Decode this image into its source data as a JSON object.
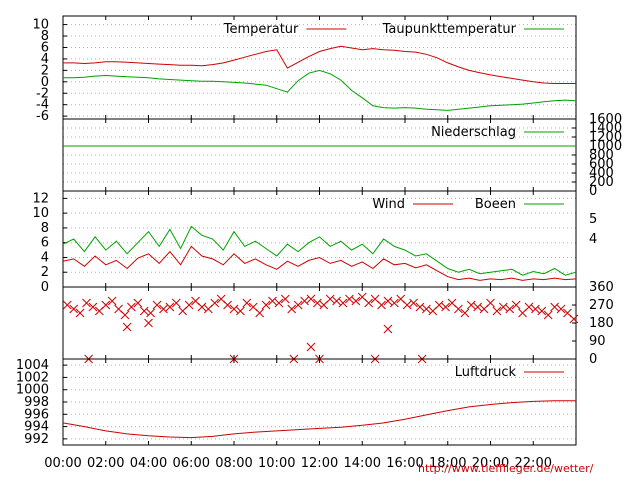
{
  "footer": {
    "credit": "http://www.tiefflieger.de/wetter/"
  },
  "x_axis": {
    "tick_labels": [
      "00:00",
      "02:00",
      "04:00",
      "06:00",
      "08:00",
      "10:00",
      "12:00",
      "14:00",
      "16:00",
      "18:00",
      "20:00",
      "22:00"
    ],
    "range_hours": [
      0,
      24
    ]
  },
  "colors": {
    "red": "#d00000",
    "green": "#00a000",
    "grid": "#b0b0b0",
    "frame": "#000000"
  },
  "chart_data": [
    {
      "id": "temperature",
      "type": "line",
      "ylim": [
        -6.5,
        11.5
      ],
      "yticks": [
        -6,
        -4,
        -2,
        0,
        2,
        4,
        6,
        8,
        10
      ],
      "grid": true,
      "legend_position": "top",
      "x": [
        0,
        0.5,
        1,
        1.5,
        2,
        2.5,
        3,
        3.5,
        4,
        4.5,
        5,
        5.5,
        6,
        6.5,
        7,
        7.5,
        8,
        8.5,
        9,
        9.5,
        10,
        10.5,
        11,
        11.5,
        12,
        12.5,
        13,
        13.5,
        14,
        14.5,
        15,
        15.5,
        16,
        16.5,
        17,
        17.5,
        18,
        18.5,
        19,
        19.5,
        20,
        20.5,
        21,
        21.5,
        22,
        22.5,
        23,
        23.5,
        24
      ],
      "series": [
        {
          "name": "Temperatur",
          "color": "#d00000",
          "values": [
            3.3,
            3.3,
            3.2,
            3.3,
            3.5,
            3.5,
            3.4,
            3.3,
            3.2,
            3.1,
            3.0,
            2.9,
            2.9,
            2.8,
            3.0,
            3.3,
            3.8,
            4.3,
            4.8,
            5.3,
            5.6,
            2.4,
            3.4,
            4.4,
            5.3,
            5.8,
            6.2,
            5.9,
            5.6,
            5.8,
            5.6,
            5.5,
            5.3,
            5.2,
            4.8,
            4.2,
            3.3,
            2.6,
            2.0,
            1.6,
            1.2,
            0.9,
            0.6,
            0.3,
            0.0,
            -0.2,
            -0.3,
            -0.3,
            -0.3
          ]
        },
        {
          "name": "Taupunkttemperatur",
          "color": "#00a000",
          "values": [
            0.7,
            0.7,
            0.8,
            1.0,
            1.1,
            1.0,
            0.9,
            0.8,
            0.7,
            0.5,
            0.4,
            0.3,
            0.2,
            0.1,
            0.1,
            0.0,
            -0.1,
            -0.2,
            -0.4,
            -0.6,
            -1.2,
            -1.8,
            0.2,
            1.5,
            2.0,
            1.4,
            0.3,
            -1.5,
            -2.8,
            -4.2,
            -4.5,
            -4.6,
            -4.5,
            -4.6,
            -4.8,
            -4.9,
            -5.0,
            -4.8,
            -4.6,
            -4.4,
            -4.2,
            -4.1,
            -4.0,
            -3.9,
            -3.7,
            -3.5,
            -3.3,
            -3.2,
            -3.3
          ]
        }
      ]
    },
    {
      "id": "precipitation",
      "type": "line",
      "ylim": [
        0,
        1600
      ],
      "yticks_right": [
        0,
        200,
        400,
        600,
        800,
        1000,
        1200,
        1400,
        1600
      ],
      "grid": true,
      "legend_position": "top",
      "x": [
        0,
        24
      ],
      "series": [
        {
          "name": "Niederschlag",
          "color": "#00a000",
          "values": [
            1000,
            1000
          ]
        }
      ]
    },
    {
      "id": "wind",
      "type": "line",
      "ylim": [
        0,
        13
      ],
      "yticks": [
        0,
        2,
        4,
        6,
        8,
        10,
        12
      ],
      "right_labels": [
        "5",
        "4"
      ],
      "grid": true,
      "legend_position": "top",
      "x": [
        0,
        0.5,
        1,
        1.5,
        2,
        2.5,
        3,
        3.5,
        4,
        4.5,
        5,
        5.5,
        6,
        6.5,
        7,
        7.5,
        8,
        8.5,
        9,
        9.5,
        10,
        10.5,
        11,
        11.5,
        12,
        12.5,
        13,
        13.5,
        14,
        14.5,
        15,
        15.5,
        16,
        16.5,
        17,
        17.5,
        18,
        18.5,
        19,
        19.5,
        20,
        20.5,
        21,
        21.5,
        22,
        22.5,
        23,
        23.5,
        24
      ],
      "series": [
        {
          "name": "Wind",
          "color": "#d00000",
          "values": [
            3.5,
            3.8,
            2.8,
            4.2,
            3.0,
            3.6,
            2.5,
            3.9,
            4.5,
            3.2,
            4.8,
            3.0,
            5.5,
            4.2,
            3.8,
            3.0,
            4.5,
            3.2,
            3.8,
            3.0,
            2.4,
            3.5,
            2.8,
            3.6,
            4.0,
            3.2,
            3.6,
            2.8,
            3.4,
            2.5,
            3.8,
            3.0,
            3.2,
            2.6,
            3.0,
            2.2,
            1.4,
            1.0,
            1.2,
            0.9,
            1.1,
            1.0,
            1.2,
            0.9,
            1.1,
            1.0,
            1.2,
            1.0,
            1.1
          ]
        },
        {
          "name": "Boeen",
          "color": "#00a000",
          "values": [
            5.8,
            6.5,
            4.8,
            6.8,
            5.0,
            6.2,
            4.5,
            6.0,
            7.5,
            5.5,
            7.8,
            5.2,
            8.2,
            7.0,
            6.5,
            5.0,
            7.5,
            5.5,
            6.2,
            5.2,
            4.2,
            5.8,
            4.8,
            6.0,
            6.8,
            5.5,
            6.2,
            5.0,
            5.8,
            4.5,
            6.5,
            5.5,
            5.0,
            4.2,
            4.5,
            3.5,
            2.5,
            2.0,
            2.4,
            1.8,
            2.0,
            2.2,
            2.4,
            1.6,
            2.1,
            1.8,
            2.5,
            1.6,
            2.0
          ]
        }
      ]
    },
    {
      "id": "wind_direction",
      "type": "scatter",
      "ylim": [
        0,
        360
      ],
      "yticks_right": [
        0,
        90,
        180,
        270,
        360
      ],
      "marker": "x",
      "color": "#d00000",
      "x": [
        0.2,
        0.5,
        0.8,
        1.1,
        1.4,
        1.7,
        2.0,
        2.3,
        2.6,
        2.9,
        3.2,
        3.5,
        3.8,
        4.1,
        4.4,
        4.7,
        5.0,
        5.3,
        5.6,
        5.9,
        6.2,
        6.5,
        6.8,
        7.1,
        7.4,
        7.7,
        8.0,
        8.3,
        8.6,
        8.9,
        9.2,
        9.5,
        9.8,
        10.1,
        10.4,
        10.7,
        11.0,
        11.3,
        11.6,
        11.9,
        12.2,
        12.5,
        12.8,
        13.1,
        13.4,
        13.7,
        14.0,
        14.3,
        14.6,
        14.9,
        15.2,
        15.5,
        15.8,
        16.1,
        16.4,
        16.7,
        17.0,
        17.3,
        17.6,
        17.9,
        18.2,
        18.5,
        18.8,
        19.1,
        19.4,
        19.7,
        20.0,
        20.3,
        20.6,
        20.9,
        21.2,
        21.5,
        21.8,
        22.1,
        22.4,
        22.7,
        23.0,
        23.3,
        23.6,
        23.9,
        1.2,
        8.0,
        10.8,
        12.0,
        14.6,
        16.8,
        4.0,
        15.2,
        3.0,
        11.6
      ],
      "values": [
        270,
        250,
        230,
        280,
        260,
        240,
        270,
        290,
        250,
        220,
        260,
        280,
        240,
        230,
        270,
        250,
        260,
        280,
        240,
        270,
        290,
        260,
        250,
        280,
        300,
        270,
        250,
        240,
        280,
        260,
        230,
        270,
        290,
        280,
        300,
        250,
        270,
        290,
        300,
        280,
        270,
        300,
        290,
        280,
        300,
        290,
        310,
        280,
        300,
        270,
        290,
        280,
        300,
        270,
        280,
        260,
        250,
        240,
        270,
        260,
        280,
        250,
        230,
        270,
        260,
        250,
        280,
        240,
        260,
        250,
        270,
        230,
        260,
        250,
        240,
        220,
        260,
        250,
        230,
        200,
        0,
        0,
        0,
        0,
        0,
        0,
        180,
        150,
        160,
        60
      ]
    },
    {
      "id": "pressure",
      "type": "line",
      "ylim": [
        991,
        1005
      ],
      "yticks": [
        992,
        994,
        996,
        998,
        1000,
        1002,
        1004
      ],
      "grid": true,
      "legend_position": "top",
      "x": [
        0,
        1,
        2,
        3,
        4,
        5,
        6,
        7,
        8,
        9,
        10,
        11,
        12,
        13,
        14,
        15,
        16,
        17,
        18,
        19,
        20,
        21,
        22,
        23,
        24
      ],
      "series": [
        {
          "name": "Luftdruck",
          "color": "#d00000",
          "values": [
            994.6,
            994.0,
            993.3,
            992.8,
            992.5,
            992.3,
            992.2,
            992.4,
            992.8,
            993.1,
            993.3,
            993.5,
            993.7,
            993.9,
            994.2,
            994.6,
            995.2,
            995.9,
            996.6,
            997.2,
            997.6,
            997.9,
            998.1,
            998.2,
            998.2
          ]
        }
      ]
    }
  ]
}
